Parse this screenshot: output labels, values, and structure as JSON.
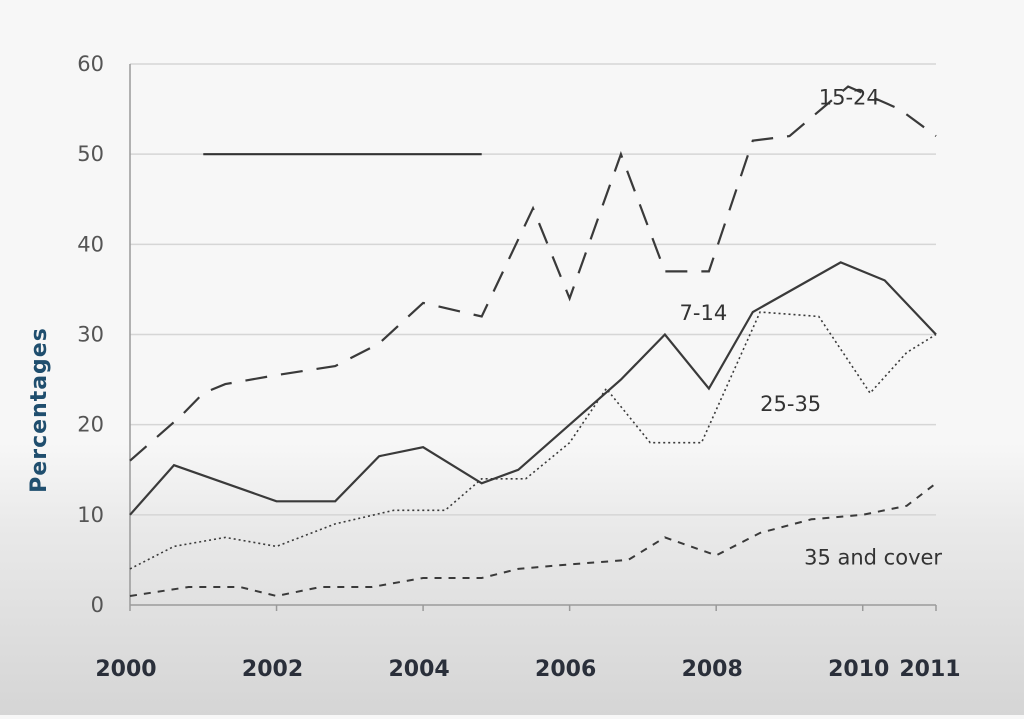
{
  "chart_data": {
    "type": "line",
    "title": "",
    "xlabel": "",
    "ylabel": "Percentages",
    "x": [
      2000,
      2000.8,
      2002,
      2002.9,
      2003.5,
      2004,
      2004.6,
      2005.3,
      2006,
      2006.8,
      2007.6,
      2008.2,
      2009,
      2009.5,
      2009.8,
      2010.4,
      2011
    ],
    "xticks": [
      "2000",
      "2002",
      "2004",
      "2006",
      "2008",
      "2010",
      "2011"
    ],
    "ylim": [
      0,
      60
    ],
    "yticks": [
      0,
      10,
      20,
      30,
      40,
      50,
      60
    ],
    "grid": true,
    "series": [
      {
        "name": "15-24",
        "style": "dashed",
        "x": [
          2000,
          2000.7,
          2001,
          2001.3,
          2002,
          2002.8,
          2003.4,
          2004,
          2004.8,
          2005.5,
          2006,
          2006.7,
          2007.3,
          2007.9,
          2008.5,
          2009,
          2009.8,
          2010.5,
          2011
        ],
        "values": [
          16,
          21,
          23.5,
          24.5,
          25.5,
          26.5,
          29,
          33.5,
          32,
          44,
          34,
          50,
          37,
          37,
          51.5,
          52,
          57.5,
          55,
          52
        ]
      },
      {
        "name": "7-14",
        "style": "solid",
        "x": [
          2000,
          2000.6,
          2002,
          2002.8,
          2003.4,
          2004,
          2004.8,
          2005.3,
          2006,
          2006.7,
          2007.3,
          2007.9,
          2008.5,
          2009.7,
          2010.3,
          2011
        ],
        "values": [
          10,
          15.5,
          11.5,
          11.5,
          16.5,
          17.5,
          13.5,
          15,
          20,
          25,
          30,
          24,
          32.5,
          38,
          36,
          30
        ]
      },
      {
        "name": "25-35",
        "style": "dotted",
        "x": [
          2000,
          2000.6,
          2001.3,
          2002,
          2002.8,
          2003.6,
          2004.3,
          2004.8,
          2005.4,
          2006,
          2006.5,
          2007.1,
          2007.8,
          2008.6,
          2009.4,
          2010.1,
          2010.6,
          2011
        ],
        "values": [
          4,
          6.5,
          7.5,
          6.5,
          9,
          10.5,
          10.5,
          14,
          14,
          18,
          24,
          18,
          18,
          32.5,
          32,
          23.5,
          28,
          30
        ]
      },
      {
        "name": "35 and cover",
        "style": "short-dashed",
        "x": [
          2000,
          2000.8,
          2001.5,
          2002,
          2002.6,
          2003.3,
          2004,
          2004.8,
          2005.3,
          2006,
          2006.8,
          2007.3,
          2008,
          2008.6,
          2009.3,
          2010,
          2010.6,
          2011
        ],
        "values": [
          1,
          2,
          2,
          1,
          2,
          2,
          3,
          3,
          4,
          4.5,
          5,
          7.5,
          5.5,
          8,
          9.5,
          10,
          11,
          13.5
        ]
      }
    ],
    "annotations": [
      {
        "type": "horizontal-segment",
        "y": 50,
        "x_start": 2001,
        "x_end": 2004.8
      }
    ],
    "label_positions": [
      {
        "series": "15-24",
        "x": 2009.4,
        "y": 55.5
      },
      {
        "series": "7-14",
        "x": 2007.5,
        "y": 31.6
      },
      {
        "series": "25-35",
        "x": 2008.6,
        "y": 21.5
      },
      {
        "series": "35 and cover",
        "x": 2009.2,
        "y": 4.5
      }
    ]
  }
}
